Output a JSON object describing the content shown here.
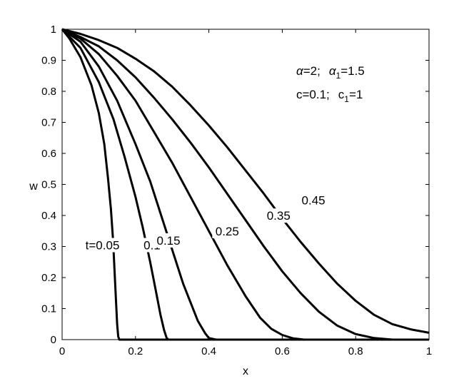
{
  "chart_data": {
    "type": "line",
    "xlabel": "x",
    "ylabel": "w",
    "xlim": [
      0,
      1
    ],
    "ylim": [
      0,
      1
    ],
    "grid": false,
    "xticks": [
      "0",
      "0.2",
      "0.4",
      "0.6",
      "0.8",
      "1"
    ],
    "yticks": [
      "0",
      "0.1",
      "0.2",
      "0.3",
      "0.4",
      "0.5",
      "0.6",
      "0.7",
      "0.8",
      "0.9",
      "1"
    ],
    "annotations": {
      "line1": {
        "alpha": "α",
        "alpha_val": "=2;",
        "alpha1": "α",
        "alpha1_sub": "1",
        "alpha1_val": "=1.5"
      },
      "line2": {
        "c": "c=0.1;",
        "c1": "c",
        "c1_sub": "1",
        "c1_val": "=1"
      }
    },
    "series": [
      {
        "label": "t=0.05",
        "points": [
          [
            0,
            1
          ],
          [
            0.02,
            0.97
          ],
          [
            0.05,
            0.91
          ],
          [
            0.08,
            0.82
          ],
          [
            0.1,
            0.73
          ],
          [
            0.115,
            0.63
          ],
          [
            0.125,
            0.52
          ],
          [
            0.133,
            0.42
          ],
          [
            0.139,
            0.32
          ],
          [
            0.143,
            0.22
          ],
          [
            0.147,
            0.12
          ],
          [
            0.15,
            0.05
          ],
          [
            0.153,
            0.01
          ],
          [
            0.156,
            0
          ],
          [
            1,
            0
          ]
        ]
      },
      {
        "label": "0.1",
        "points": [
          [
            0,
            1
          ],
          [
            0.05,
            0.94
          ],
          [
            0.1,
            0.83
          ],
          [
            0.14,
            0.71
          ],
          [
            0.17,
            0.59
          ],
          [
            0.2,
            0.46
          ],
          [
            0.22,
            0.36
          ],
          [
            0.24,
            0.25
          ],
          [
            0.255,
            0.16
          ],
          [
            0.268,
            0.08
          ],
          [
            0.278,
            0.03
          ],
          [
            0.285,
            0.005
          ],
          [
            0.29,
            0
          ],
          [
            1,
            0
          ]
        ]
      },
      {
        "label": "0.15",
        "points": [
          [
            0,
            1
          ],
          [
            0.05,
            0.96
          ],
          [
            0.1,
            0.88
          ],
          [
            0.15,
            0.77
          ],
          [
            0.2,
            0.63
          ],
          [
            0.24,
            0.51
          ],
          [
            0.27,
            0.4
          ],
          [
            0.3,
            0.29
          ],
          [
            0.33,
            0.18
          ],
          [
            0.35,
            0.12
          ],
          [
            0.37,
            0.06
          ],
          [
            0.39,
            0.02
          ],
          [
            0.4,
            0.005
          ],
          [
            0.42,
            0
          ],
          [
            1,
            0
          ]
        ]
      },
      {
        "label": "0.25",
        "points": [
          [
            0,
            1
          ],
          [
            0.05,
            0.97
          ],
          [
            0.1,
            0.92
          ],
          [
            0.15,
            0.85
          ],
          [
            0.2,
            0.77
          ],
          [
            0.25,
            0.67
          ],
          [
            0.3,
            0.57
          ],
          [
            0.35,
            0.46
          ],
          [
            0.4,
            0.35
          ],
          [
            0.45,
            0.24
          ],
          [
            0.5,
            0.14
          ],
          [
            0.54,
            0.07
          ],
          [
            0.57,
            0.035
          ],
          [
            0.6,
            0.015
          ],
          [
            0.63,
            0.004
          ],
          [
            0.66,
            0
          ],
          [
            1,
            0
          ]
        ]
      },
      {
        "label": "0.35",
        "points": [
          [
            0,
            1
          ],
          [
            0.05,
            0.975
          ],
          [
            0.1,
            0.945
          ],
          [
            0.15,
            0.9
          ],
          [
            0.2,
            0.845
          ],
          [
            0.25,
            0.78
          ],
          [
            0.3,
            0.71
          ],
          [
            0.35,
            0.635
          ],
          [
            0.4,
            0.555
          ],
          [
            0.45,
            0.47
          ],
          [
            0.5,
            0.385
          ],
          [
            0.55,
            0.3
          ],
          [
            0.6,
            0.22
          ],
          [
            0.65,
            0.15
          ],
          [
            0.7,
            0.09
          ],
          [
            0.75,
            0.045
          ],
          [
            0.8,
            0.018
          ],
          [
            0.85,
            0.005
          ],
          [
            0.9,
            0
          ],
          [
            1,
            0
          ]
        ]
      },
      {
        "label": "0.45",
        "points": [
          [
            0,
            1
          ],
          [
            0.05,
            0.985
          ],
          [
            0.1,
            0.965
          ],
          [
            0.15,
            0.94
          ],
          [
            0.2,
            0.905
          ],
          [
            0.25,
            0.865
          ],
          [
            0.3,
            0.815
          ],
          [
            0.35,
            0.755
          ],
          [
            0.4,
            0.69
          ],
          [
            0.45,
            0.62
          ],
          [
            0.5,
            0.545
          ],
          [
            0.55,
            0.47
          ],
          [
            0.6,
            0.39
          ],
          [
            0.65,
            0.315
          ],
          [
            0.7,
            0.245
          ],
          [
            0.75,
            0.18
          ],
          [
            0.8,
            0.125
          ],
          [
            0.85,
            0.08
          ],
          [
            0.9,
            0.05
          ],
          [
            0.95,
            0.033
          ],
          [
            1.0,
            0.022
          ]
        ]
      }
    ],
    "series_labels": [
      {
        "text": "t=0.05",
        "x": 0.11,
        "y": 0.3
      },
      {
        "text": "0.1",
        "x": 0.245,
        "y": 0.3
      },
      {
        "text": "0.15",
        "x": 0.29,
        "y": 0.315
      },
      {
        "text": "0.25",
        "x": 0.45,
        "y": 0.345
      },
      {
        "text": "0.35",
        "x": 0.59,
        "y": 0.395
      },
      {
        "text": "0.45",
        "x": 0.685,
        "y": 0.445
      }
    ]
  }
}
